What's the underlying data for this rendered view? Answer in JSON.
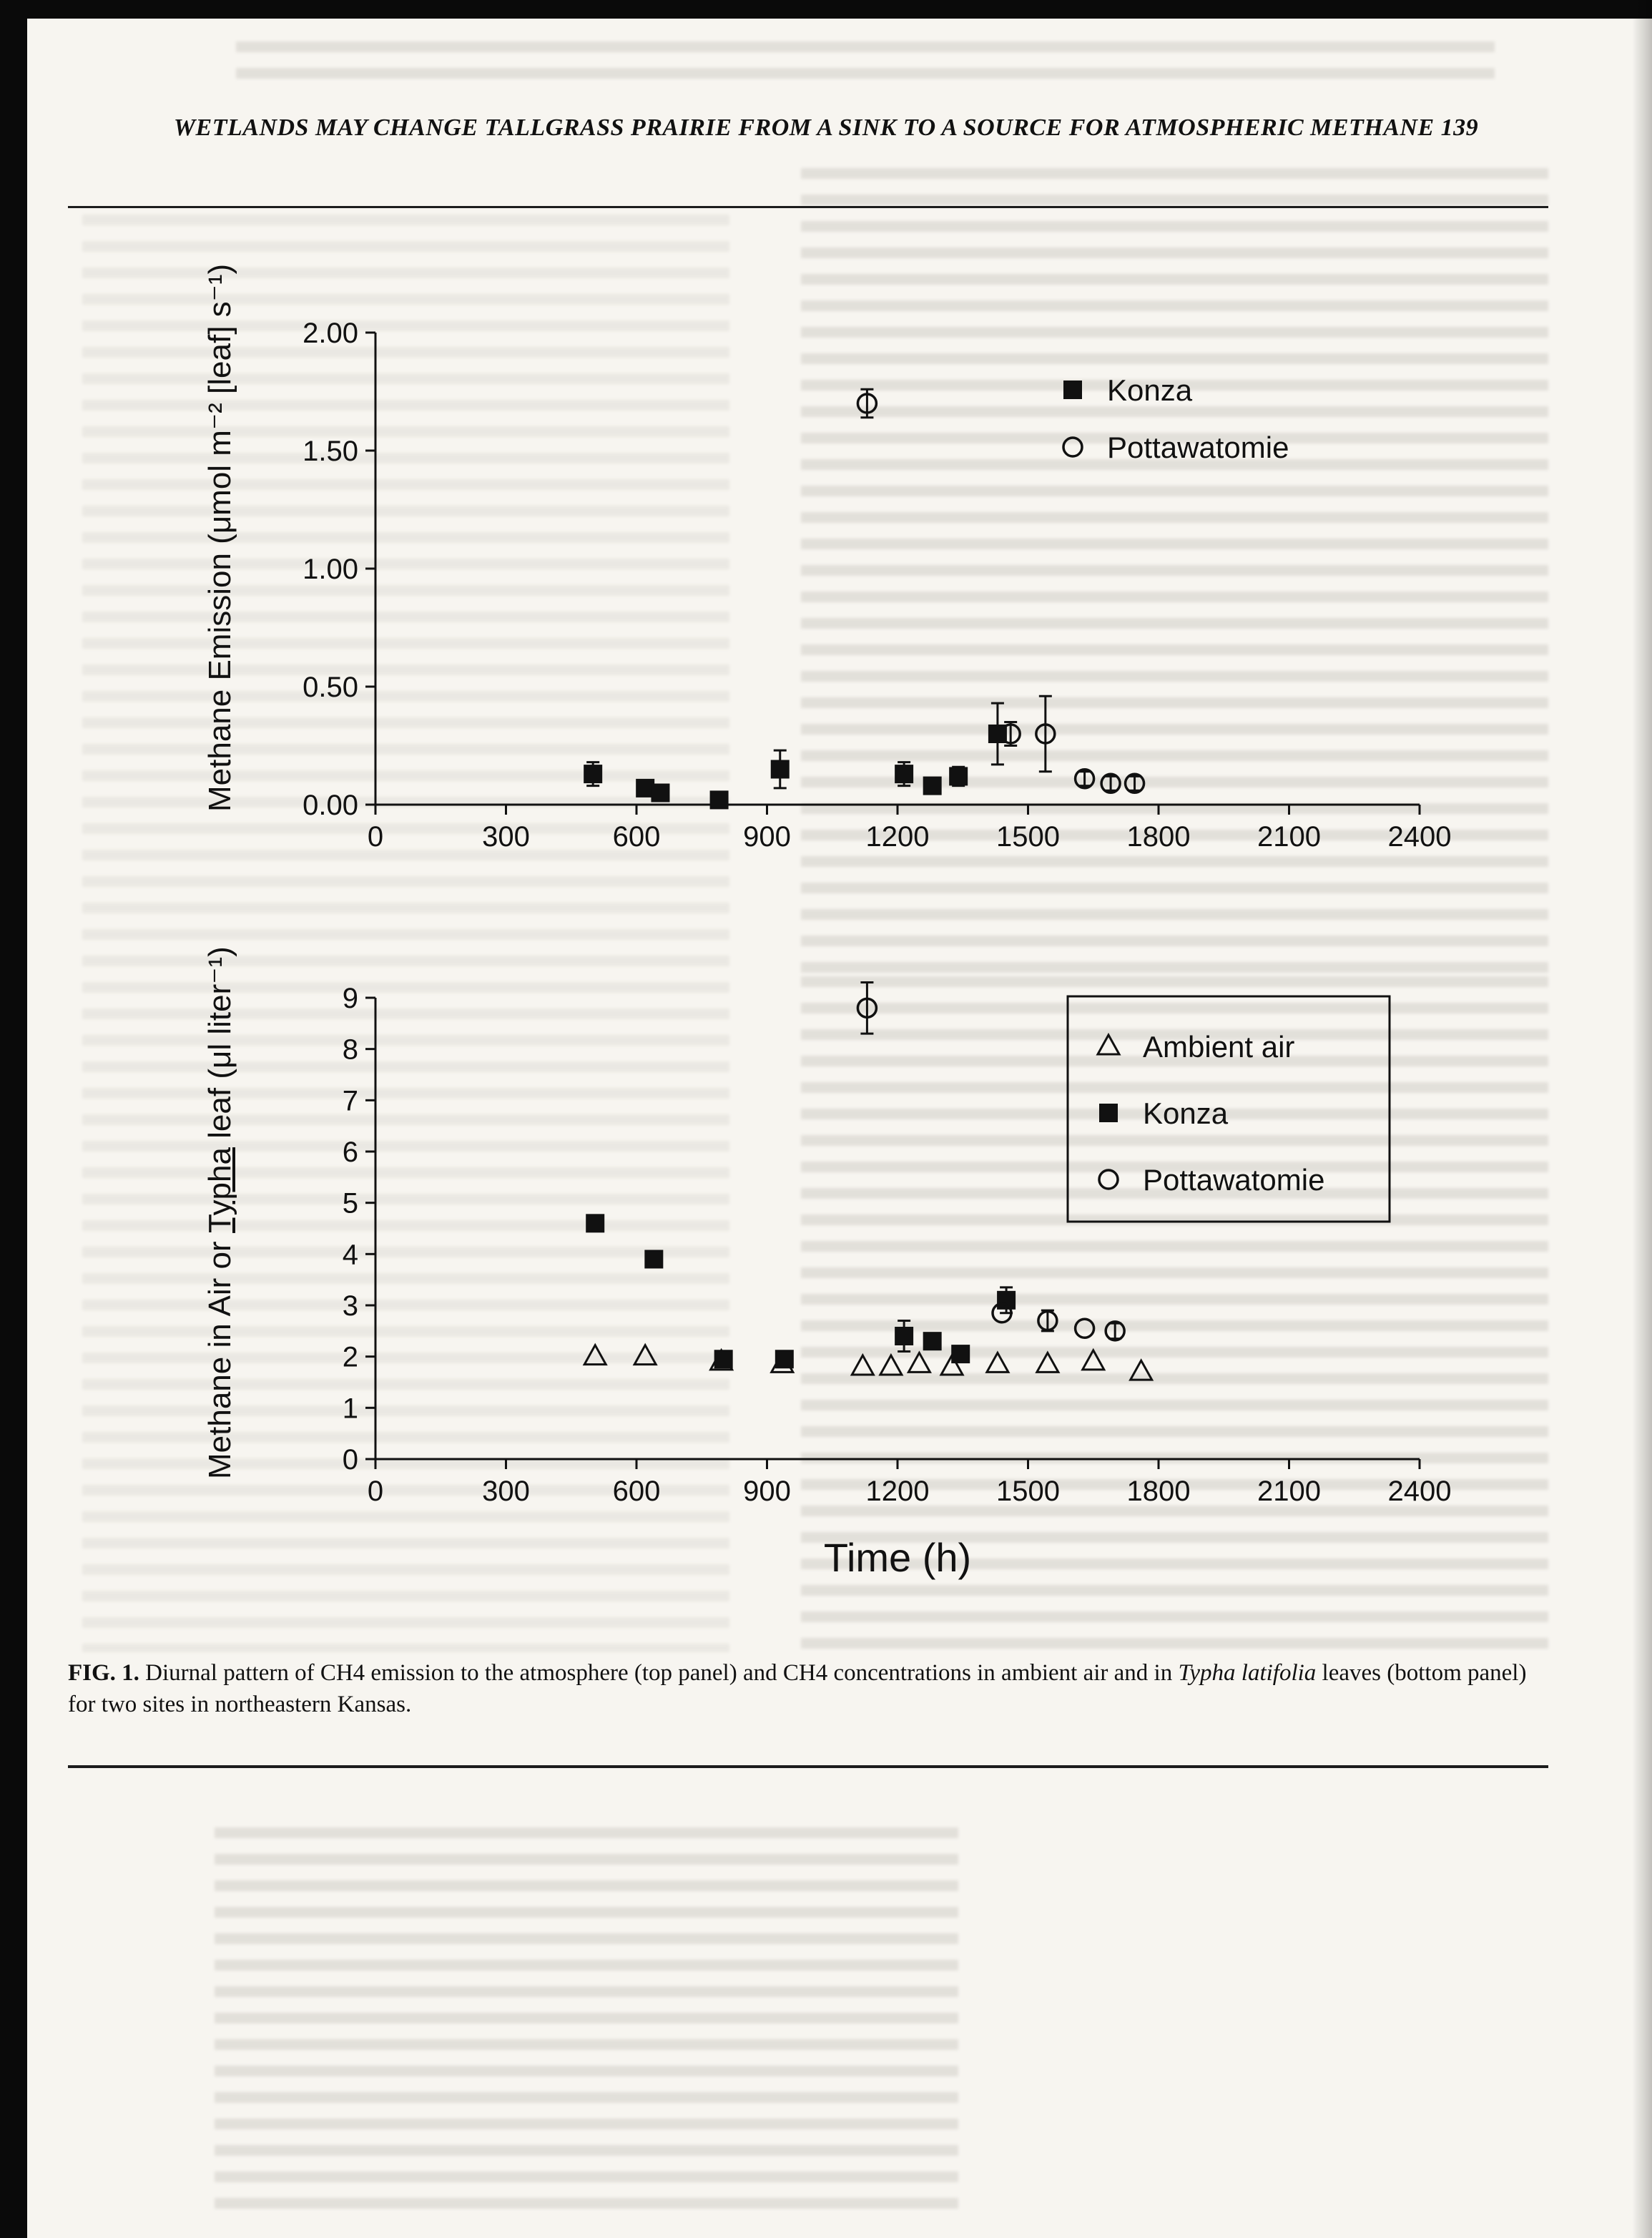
{
  "page": {
    "header": "WETLANDS MAY CHANGE TALLGRASS PRAIRIE FROM A SINK TO A SOURCE FOR ATMOSPHERIC METHANE 139",
    "caption": {
      "fig_label": "FIG. 1.",
      "text_before_italic": " Diurnal pattern of CH4 emission to the atmosphere (top panel) and CH4 concentrations in ambient air and in ",
      "italic_species": "Typha latifolia",
      "text_after_italic": " leaves (bottom panel) for two sites in northeastern Kansas."
    }
  },
  "chart_data": [
    {
      "type": "scatter",
      "title": "",
      "xlabel": "",
      "ylabel": "Methane Emission (μmol m⁻² [leaf] s⁻¹)",
      "xlim": [
        0,
        2400
      ],
      "ylim": [
        0,
        2.0
      ],
      "xticks": [
        0,
        300,
        600,
        900,
        1200,
        1500,
        1800,
        2100,
        2400
      ],
      "yticks": [
        0,
        0.5,
        1.0,
        1.5,
        2.0
      ],
      "ytick_labels": [
        "0.00",
        "0.50",
        "1.00",
        "1.50",
        "2.00"
      ],
      "grid": false,
      "legend": {
        "position": "upper-right",
        "boxed": false,
        "entries": [
          {
            "label": "Konza",
            "marker": "filled-square"
          },
          {
            "label": "Pottawatomie",
            "marker": "open-circle"
          }
        ]
      },
      "series": [
        {
          "name": "Konza",
          "marker": "filled-square",
          "points": [
            {
              "x": 500,
              "y": 0.13,
              "err": 0.05
            },
            {
              "x": 620,
              "y": 0.07
            },
            {
              "x": 655,
              "y": 0.05
            },
            {
              "x": 790,
              "y": 0.02
            },
            {
              "x": 930,
              "y": 0.15,
              "err": 0.08
            },
            {
              "x": 1215,
              "y": 0.13,
              "err": 0.05
            },
            {
              "x": 1280,
              "y": 0.08
            },
            {
              "x": 1340,
              "y": 0.12,
              "err": 0.04
            },
            {
              "x": 1430,
              "y": 0.3,
              "err": 0.13
            }
          ]
        },
        {
          "name": "Pottawatomie",
          "marker": "open-circle",
          "points": [
            {
              "x": 1130,
              "y": 1.7,
              "err": 0.06
            },
            {
              "x": 1460,
              "y": 0.3,
              "err": 0.05
            },
            {
              "x": 1540,
              "y": 0.3,
              "err": 0.16
            },
            {
              "x": 1630,
              "y": 0.11,
              "err": 0.03
            },
            {
              "x": 1690,
              "y": 0.09,
              "err": 0.03
            },
            {
              "x": 1745,
              "y": 0.09,
              "err": 0.03
            }
          ]
        }
      ]
    },
    {
      "type": "scatter",
      "title": "",
      "xlabel": "Time (h)",
      "ylabel_parts": {
        "before": "Methane in Air or ",
        "underlined": "Typha",
        "after": " leaf (μl liter⁻¹)"
      },
      "xlim": [
        0,
        2400
      ],
      "ylim": [
        0,
        9
      ],
      "xticks": [
        0,
        300,
        600,
        900,
        1200,
        1500,
        1800,
        2100,
        2400
      ],
      "yticks": [
        0,
        1,
        2,
        3,
        4,
        5,
        6,
        7,
        8,
        9
      ],
      "ytick_labels": [
        "0",
        "1",
        "2",
        "3",
        "4",
        "5",
        "6",
        "7",
        "8",
        "9"
      ],
      "grid": false,
      "legend": {
        "position": "upper-right",
        "boxed": true,
        "entries": [
          {
            "label": "Ambient air",
            "marker": "open-triangle"
          },
          {
            "label": "Konza",
            "marker": "filled-square"
          },
          {
            "label": "Pottawatomie",
            "marker": "open-circle"
          }
        ]
      },
      "series": [
        {
          "name": "Ambient air",
          "marker": "open-triangle",
          "points": [
            {
              "x": 505,
              "y": 2.0
            },
            {
              "x": 620,
              "y": 2.0
            },
            {
              "x": 795,
              "y": 1.9
            },
            {
              "x": 935,
              "y": 1.85
            },
            {
              "x": 1120,
              "y": 1.8
            },
            {
              "x": 1185,
              "y": 1.8
            },
            {
              "x": 1250,
              "y": 1.85
            },
            {
              "x": 1325,
              "y": 1.8
            },
            {
              "x": 1430,
              "y": 1.85
            },
            {
              "x": 1545,
              "y": 1.85
            },
            {
              "x": 1650,
              "y": 1.9
            },
            {
              "x": 1760,
              "y": 1.7
            }
          ]
        },
        {
          "name": "Konza",
          "marker": "filled-square",
          "points": [
            {
              "x": 505,
              "y": 4.6
            },
            {
              "x": 640,
              "y": 3.9
            },
            {
              "x": 800,
              "y": 1.95
            },
            {
              "x": 940,
              "y": 1.95
            },
            {
              "x": 1215,
              "y": 2.4,
              "err": 0.3
            },
            {
              "x": 1280,
              "y": 2.3
            },
            {
              "x": 1345,
              "y": 2.05
            },
            {
              "x": 1450,
              "y": 3.1,
              "err": 0.25
            }
          ]
        },
        {
          "name": "Pottawatomie",
          "marker": "open-circle",
          "points": [
            {
              "x": 1130,
              "y": 8.8,
              "err": 0.5
            },
            {
              "x": 1440,
              "y": 2.85
            },
            {
              "x": 1545,
              "y": 2.7,
              "err": 0.2
            },
            {
              "x": 1630,
              "y": 2.55
            },
            {
              "x": 1700,
              "y": 2.5,
              "err": 0.15
            }
          ]
        }
      ]
    }
  ]
}
